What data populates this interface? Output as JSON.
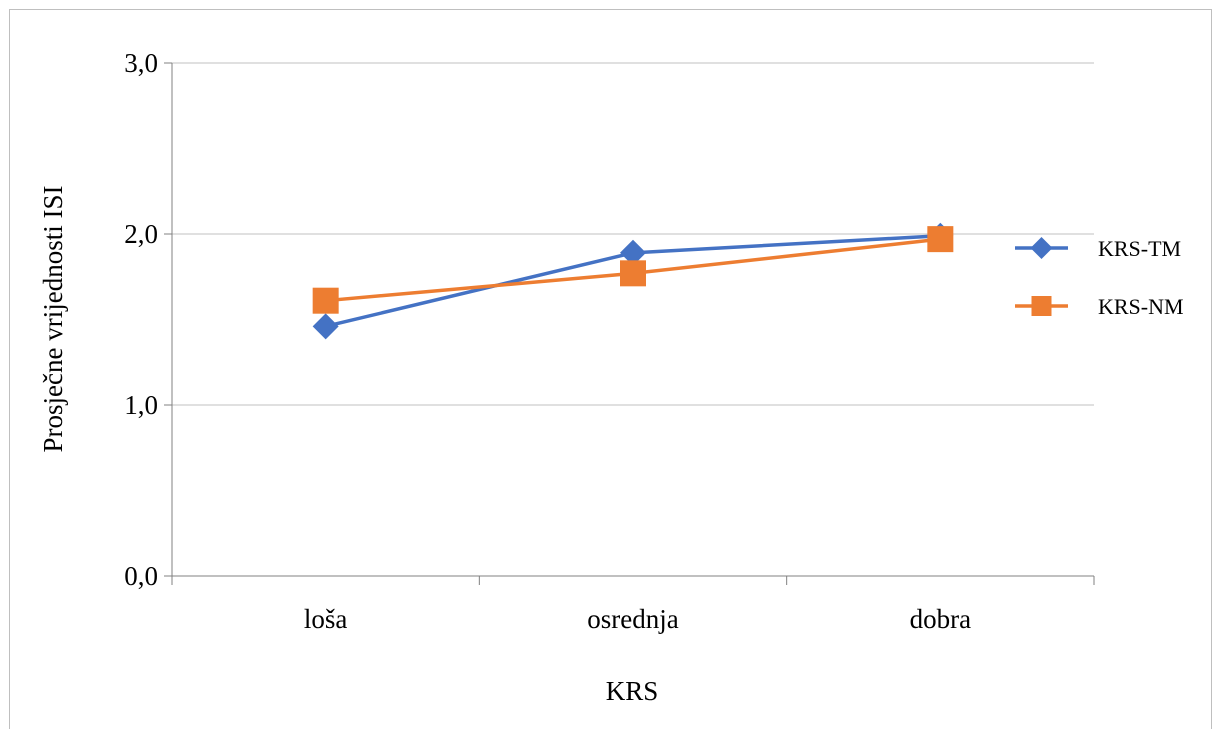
{
  "chart_data": {
    "type": "line",
    "categories": [
      "loša",
      "osrednja",
      "dobra"
    ],
    "series": [
      {
        "name": "KRS-TM",
        "values": [
          1.46,
          1.89,
          1.99
        ],
        "color": "#4472C4",
        "marker": "diamond"
      },
      {
        "name": "KRS-NM",
        "values": [
          1.61,
          1.77,
          1.97
        ],
        "color": "#ED7D31",
        "marker": "square"
      }
    ],
    "ylim": [
      0,
      3
    ],
    "yticks": [
      "0,0",
      "1,0",
      "2,0",
      "3,0"
    ],
    "yticks_values": [
      0,
      1,
      2,
      3
    ],
    "xlabel": "KRS",
    "ylabel": "Prosječne vrijednosti ISI",
    "grid": true,
    "legend_position": "right"
  }
}
